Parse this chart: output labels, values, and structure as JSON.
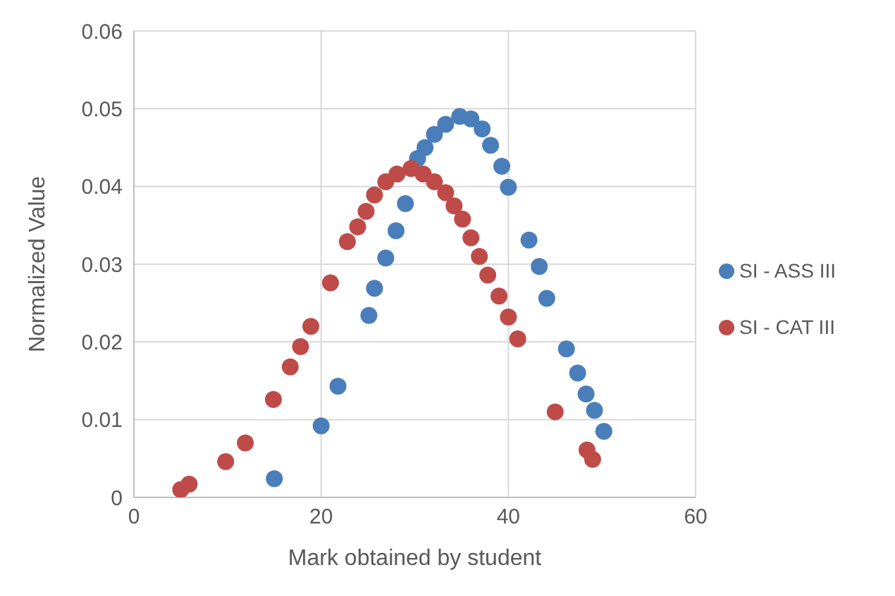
{
  "chart_data": {
    "type": "scatter",
    "xlabel": "Mark obtained by student",
    "ylabel": "Normalized Value",
    "xlim": [
      0,
      60
    ],
    "xticks": [
      0,
      20,
      40,
      60
    ],
    "ylim": [
      0,
      0.06
    ],
    "yticks": [
      0,
      0.01,
      0.02,
      0.03,
      0.04,
      0.05,
      0.06
    ],
    "grid": true,
    "legend": "right",
    "marker": "circle",
    "series": [
      {
        "name": "SI - ASS III",
        "color": "#4a7ebb",
        "x": [
          15,
          20,
          21.8,
          25.1,
          25.7,
          26.9,
          28,
          29,
          30.3,
          31.1,
          32.1,
          33.3,
          34.8,
          36,
          37.2,
          38.1,
          39.3,
          40,
          42.2,
          43.3,
          44.1,
          46.2,
          47.4,
          48.3,
          49.2,
          50.2
        ],
        "values": [
          0.0024,
          0.0092,
          0.0143,
          0.0234,
          0.0269,
          0.0308,
          0.0343,
          0.0378,
          0.0436,
          0.045,
          0.0467,
          0.048,
          0.049,
          0.0487,
          0.0474,
          0.0453,
          0.0426,
          0.0399,
          0.0331,
          0.0297,
          0.0256,
          0.0191,
          0.016,
          0.0133,
          0.0112,
          0.0085
        ]
      },
      {
        "name": "SI - CAT III",
        "color": "#be4b48",
        "x": [
          5,
          5.9,
          9.8,
          11.9,
          14.9,
          16.7,
          17.8,
          18.9,
          21,
          22.8,
          23.9,
          24.8,
          25.7,
          26.9,
          28.1,
          29.6,
          30.9,
          32.1,
          33.3,
          34.2,
          35.1,
          36,
          36.9,
          37.8,
          39,
          40,
          41,
          45,
          48.4,
          49
        ],
        "values": [
          0.001,
          0.0017,
          0.0046,
          0.007,
          0.0126,
          0.0168,
          0.0194,
          0.022,
          0.0276,
          0.0329,
          0.0348,
          0.0368,
          0.0389,
          0.0406,
          0.0416,
          0.0423,
          0.0416,
          0.0406,
          0.0392,
          0.0375,
          0.0358,
          0.0334,
          0.031,
          0.0286,
          0.0259,
          0.0232,
          0.0204,
          0.011,
          0.0061,
          0.0049
        ]
      }
    ]
  }
}
